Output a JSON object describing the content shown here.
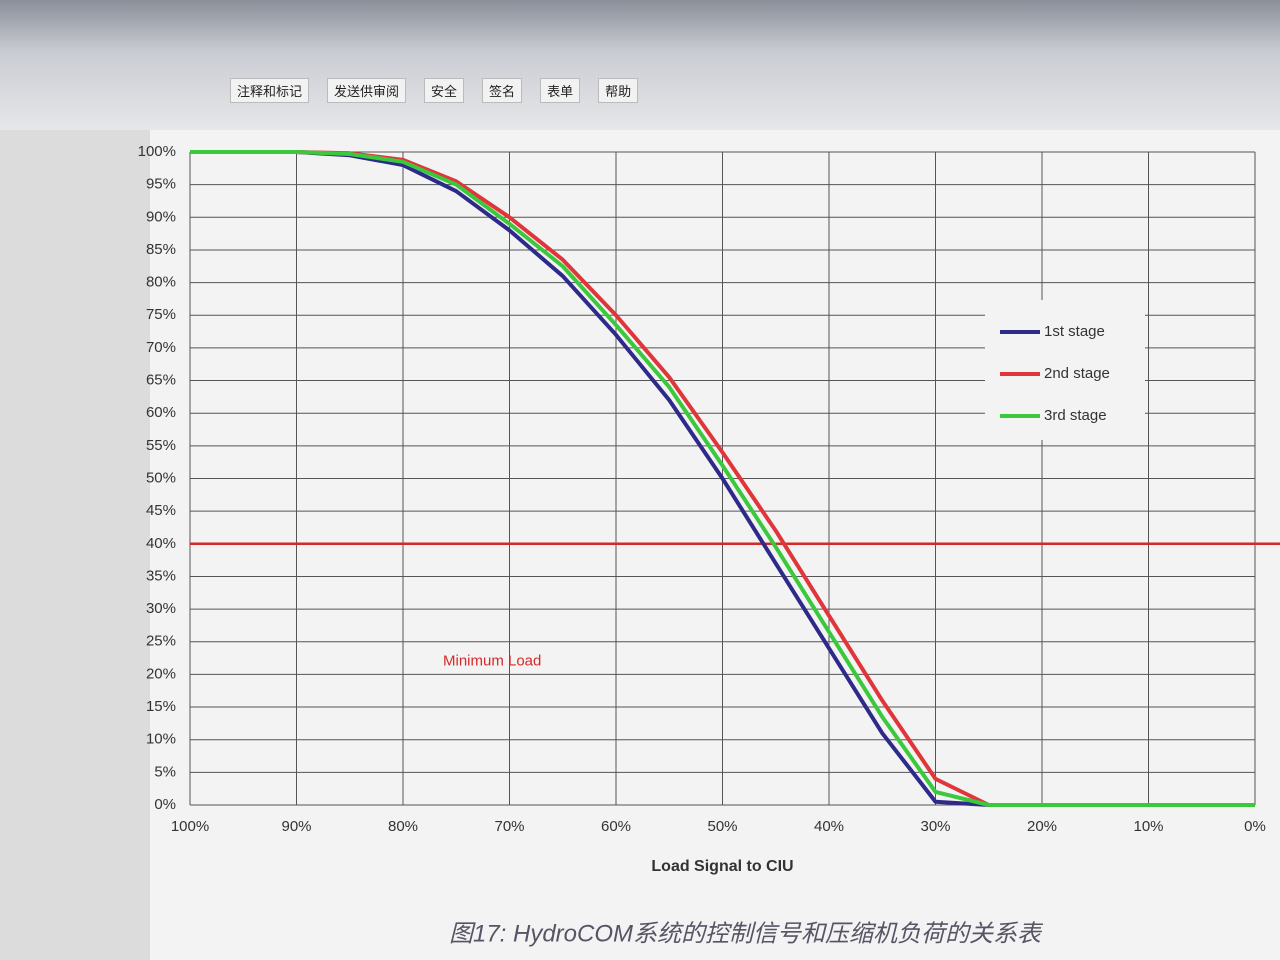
{
  "toolbar": {
    "items": [
      "注释和标记",
      "发送供审阅",
      "安全",
      "签名",
      "表单",
      "帮助"
    ]
  },
  "chart_data": {
    "type": "line",
    "x_label": "Load Signal to CIU",
    "x": [
      100,
      95,
      90,
      85,
      80,
      75,
      70,
      65,
      60,
      55,
      50,
      45,
      40,
      35,
      30,
      25,
      20,
      15,
      10,
      5,
      0
    ],
    "series": [
      {
        "name": "1st stage",
        "color": "#2e2a8a",
        "values": [
          100,
          100,
          100,
          99.5,
          98,
          94,
          88,
          81,
          72,
          62,
          50,
          37,
          24,
          11,
          0.5,
          0,
          0,
          0,
          0,
          0,
          0
        ]
      },
      {
        "name": "2nd stage",
        "color": "#e0353a",
        "values": [
          100,
          100,
          100,
          99.8,
          98.8,
          95.5,
          90,
          83.5,
          75,
          65.5,
          54,
          42,
          29,
          16,
          4,
          0,
          0,
          0,
          0,
          0,
          0
        ]
      },
      {
        "name": "3rd stage",
        "color": "#3cc83c",
        "values": [
          100,
          100,
          100,
          99.7,
          98.5,
          95,
          89,
          82.5,
          73.5,
          64,
          52,
          39.5,
          26.5,
          13.5,
          2,
          0,
          0,
          0,
          0,
          0,
          0
        ]
      }
    ],
    "xlim": [
      100,
      0
    ],
    "xticks": [
      {
        "value": 100,
        "label": "100%"
      },
      {
        "value": 90,
        "label": "90%"
      },
      {
        "value": 80,
        "label": "80%"
      },
      {
        "value": 70,
        "label": "70%"
      },
      {
        "value": 60,
        "label": "60%"
      },
      {
        "value": 50,
        "label": "50%"
      },
      {
        "value": 40,
        "label": "40%"
      },
      {
        "value": 30,
        "label": "30%"
      },
      {
        "value": 20,
        "label": "20%"
      },
      {
        "value": 10,
        "label": "10%"
      },
      {
        "value": 0,
        "label": "0%"
      }
    ],
    "ylim": [
      0,
      100
    ],
    "yticks": [
      {
        "value": 0,
        "label": "0%"
      },
      {
        "value": 5,
        "label": "5%"
      },
      {
        "value": 10,
        "label": "10%"
      },
      {
        "value": 15,
        "label": "15%"
      },
      {
        "value": 20,
        "label": "20%"
      },
      {
        "value": 25,
        "label": "25%"
      },
      {
        "value": 30,
        "label": "30%"
      },
      {
        "value": 35,
        "label": "35%"
      },
      {
        "value": 40,
        "label": "40%"
      },
      {
        "value": 45,
        "label": "45%"
      },
      {
        "value": 50,
        "label": "50%"
      },
      {
        "value": 55,
        "label": "55%"
      },
      {
        "value": 60,
        "label": "60%"
      },
      {
        "value": 65,
        "label": "65%"
      },
      {
        "value": 70,
        "label": "70%"
      },
      {
        "value": 75,
        "label": "75%"
      },
      {
        "value": 80,
        "label": "80%"
      },
      {
        "value": 85,
        "label": "85%"
      },
      {
        "value": 90,
        "label": "90%"
      },
      {
        "value": 95,
        "label": "95%"
      },
      {
        "value": 100,
        "label": "100%"
      }
    ],
    "grid": true,
    "legend": "right",
    "reference_line": {
      "value": 40,
      "color": "#d62828",
      "label": "Minimum Load"
    },
    "caption": "图17: HydroCOM系统的控制信号和压缩机负荷的关系表"
  }
}
